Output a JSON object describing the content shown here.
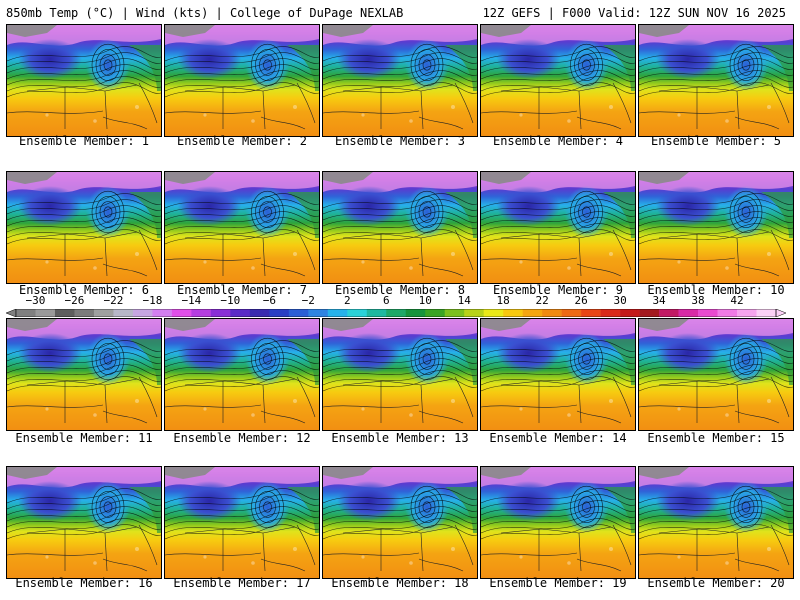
{
  "header": {
    "title_left": "850mb Temp (°C) | Wind (kts) | College of DuPage NEXLAB",
    "title_right": "12Z GEFS | F000 Valid: 12Z SUN NOV 16 2025"
  },
  "panels": [
    {
      "label": "Ensemble Member: 1"
    },
    {
      "label": "Ensemble Member: 2"
    },
    {
      "label": "Ensemble Member: 3"
    },
    {
      "label": "Ensemble Member: 4"
    },
    {
      "label": "Ensemble Member: 5"
    },
    {
      "label": "Ensemble Member: 6"
    },
    {
      "label": "Ensemble Member: 7"
    },
    {
      "label": "Ensemble Member: 8"
    },
    {
      "label": "Ensemble Member: 9"
    },
    {
      "label": "Ensemble Member: 10"
    },
    {
      "label": "Ensemble Member: 11"
    },
    {
      "label": "Ensemble Member: 12"
    },
    {
      "label": "Ensemble Member: 13"
    },
    {
      "label": "Ensemble Member: 14"
    },
    {
      "label": "Ensemble Member: 15"
    },
    {
      "label": "Ensemble Member: 16"
    },
    {
      "label": "Ensemble Member: 17"
    },
    {
      "label": "Ensemble Member: 18"
    },
    {
      "label": "Ensemble Member: 19"
    },
    {
      "label": "Ensemble Member: 20"
    }
  ],
  "colorbar": {
    "labels": [
      "−30",
      "−26",
      "−22",
      "−18",
      "−14",
      "−10",
      "−6",
      "−2",
      "2",
      "6",
      "10",
      "14",
      "18",
      "22",
      "26",
      "30",
      "34",
      "38",
      "42"
    ],
    "colors": [
      "#808080",
      "#9a9a9a",
      "#5e5e5e",
      "#7c7c7c",
      "#9fa0a0",
      "#b7b7c8",
      "#c7a6e2",
      "#d37ff0",
      "#e04fe8",
      "#b53ee0",
      "#8a2fd6",
      "#5b2bc7",
      "#3a2bb0",
      "#2a3fc4",
      "#2b5fd6",
      "#2f84e2",
      "#27b3ea",
      "#2ad2d8",
      "#20b8a0",
      "#1fa868",
      "#17943c",
      "#3aa424",
      "#7cc01e",
      "#b8d21a",
      "#eaea18",
      "#f7c90e",
      "#f4a610",
      "#f08a12",
      "#ee6a14",
      "#e84616",
      "#da2a1a",
      "#c41a1a",
      "#a41a20",
      "#c21a64",
      "#d82aa6",
      "#e84ad0",
      "#f07ae6",
      "#f6a4ee",
      "#fbd0f6"
    ]
  }
}
